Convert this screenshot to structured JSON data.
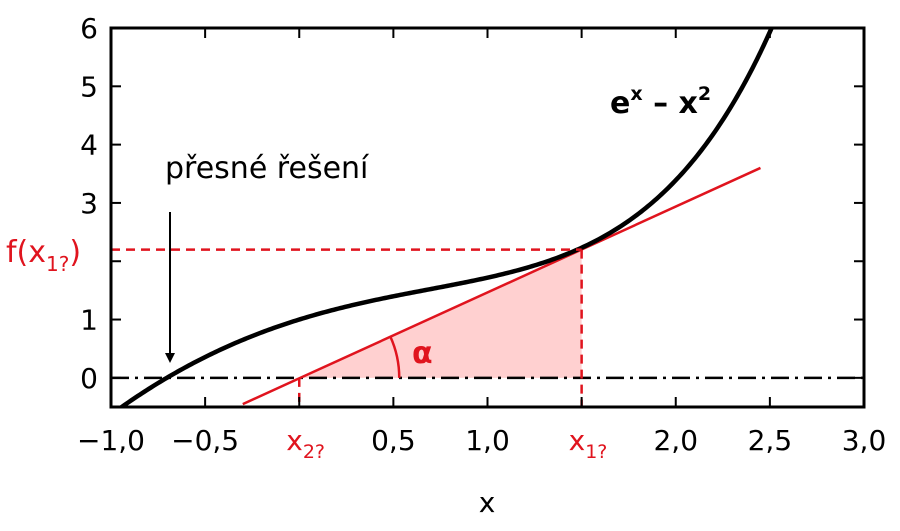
{
  "chart_data": {
    "type": "line",
    "title": "",
    "xlabel": "x",
    "ylabel": "",
    "xlim": [
      -1.0,
      3.0
    ],
    "ylim": [
      -0.5,
      6
    ],
    "x_ticks": [
      -1.0,
      -0.5,
      0.5,
      1.0,
      2.0,
      2.5,
      3.0
    ],
    "x_tick_labels": [
      "−1,0",
      "−0,5",
      "0,5",
      "1,0",
      "2,0",
      "2,5",
      "3,0"
    ],
    "y_ticks": [
      0,
      1,
      2,
      3,
      4,
      5,
      6
    ],
    "y_tick_labels": [
      "0",
      "1",
      "",
      "3",
      "4",
      "5",
      "6"
    ],
    "grid": false,
    "series": [
      {
        "name": "eˣ – x²",
        "function": "exp(x) - x^2",
        "x_range": [
          -1.0,
          2.55
        ],
        "color": "#000000"
      }
    ],
    "tangent": {
      "x": [
        -0.3,
        2.45
      ],
      "y": [
        -0.45,
        3.6
      ],
      "color": "#e0141e"
    },
    "points": {
      "x1": 1.5,
      "x2": 0.0,
      "f_x1": 2.2
    },
    "triangle_fill": "#ffd0d0",
    "annotations": {
      "curve_label_base": "e",
      "curve_label_exp1": "x",
      "curve_label_mid": " – x",
      "curve_label_exp2": "2",
      "exact_solution_label": "přesné řešení",
      "fx1_label_prefix": "f(x",
      "fx1_label_sub": "1?",
      "fx1_label_suffix": ")",
      "x1_label_base": "x",
      "x1_label_sub": "1?",
      "x2_label_base": "x",
      "x2_label_sub": "2?",
      "angle_label": "α"
    },
    "colors": {
      "curve": "#000000",
      "accent": "#e0141e",
      "fill": "#ffd0d0"
    }
  }
}
